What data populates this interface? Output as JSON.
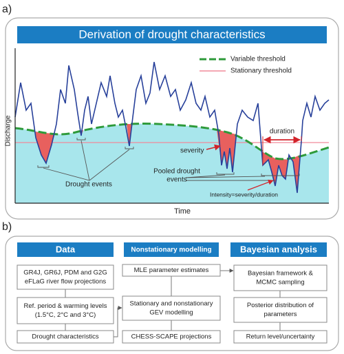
{
  "panel_a": {
    "label": "a)",
    "title": "Derivation of drought characteristics",
    "legend": [
      "Variable threshold",
      "Stationary threshold"
    ],
    "y_axis_label": "Discharge",
    "x_axis_label": "Time",
    "duration": "duration",
    "severity": "severity",
    "drought_events": "Drought events",
    "pooled_drought_events": [
      "Pooled drought",
      "events"
    ],
    "intensity": "Intensity=severity/duration"
  },
  "panel_b": {
    "label": "b)",
    "columns": [
      {
        "title": "Data",
        "boxes": [
          [
            "GR4J, GR6J, PDM and G2G",
            "eFLaG river flow projections"
          ],
          [
            "Ref. period & warming levels",
            "(1.5°C, 2°C and 3°C)"
          ],
          [
            "Drought characteristics"
          ]
        ]
      },
      {
        "title": "Nonstationary modelling",
        "boxes": [
          [
            "MLE parameter estimates"
          ],
          [
            "Stationary and nonstationary",
            "GEV modelling"
          ],
          [
            "CHESS-SCAPE projections"
          ]
        ]
      },
      {
        "title": "Bayesian analysis",
        "boxes": [
          [
            "Bayesian framework &",
            "MCMC sampling"
          ],
          [
            "Posterior distribution of",
            "parameters"
          ],
          [
            "Return level/uncertainty"
          ]
        ]
      }
    ]
  }
}
